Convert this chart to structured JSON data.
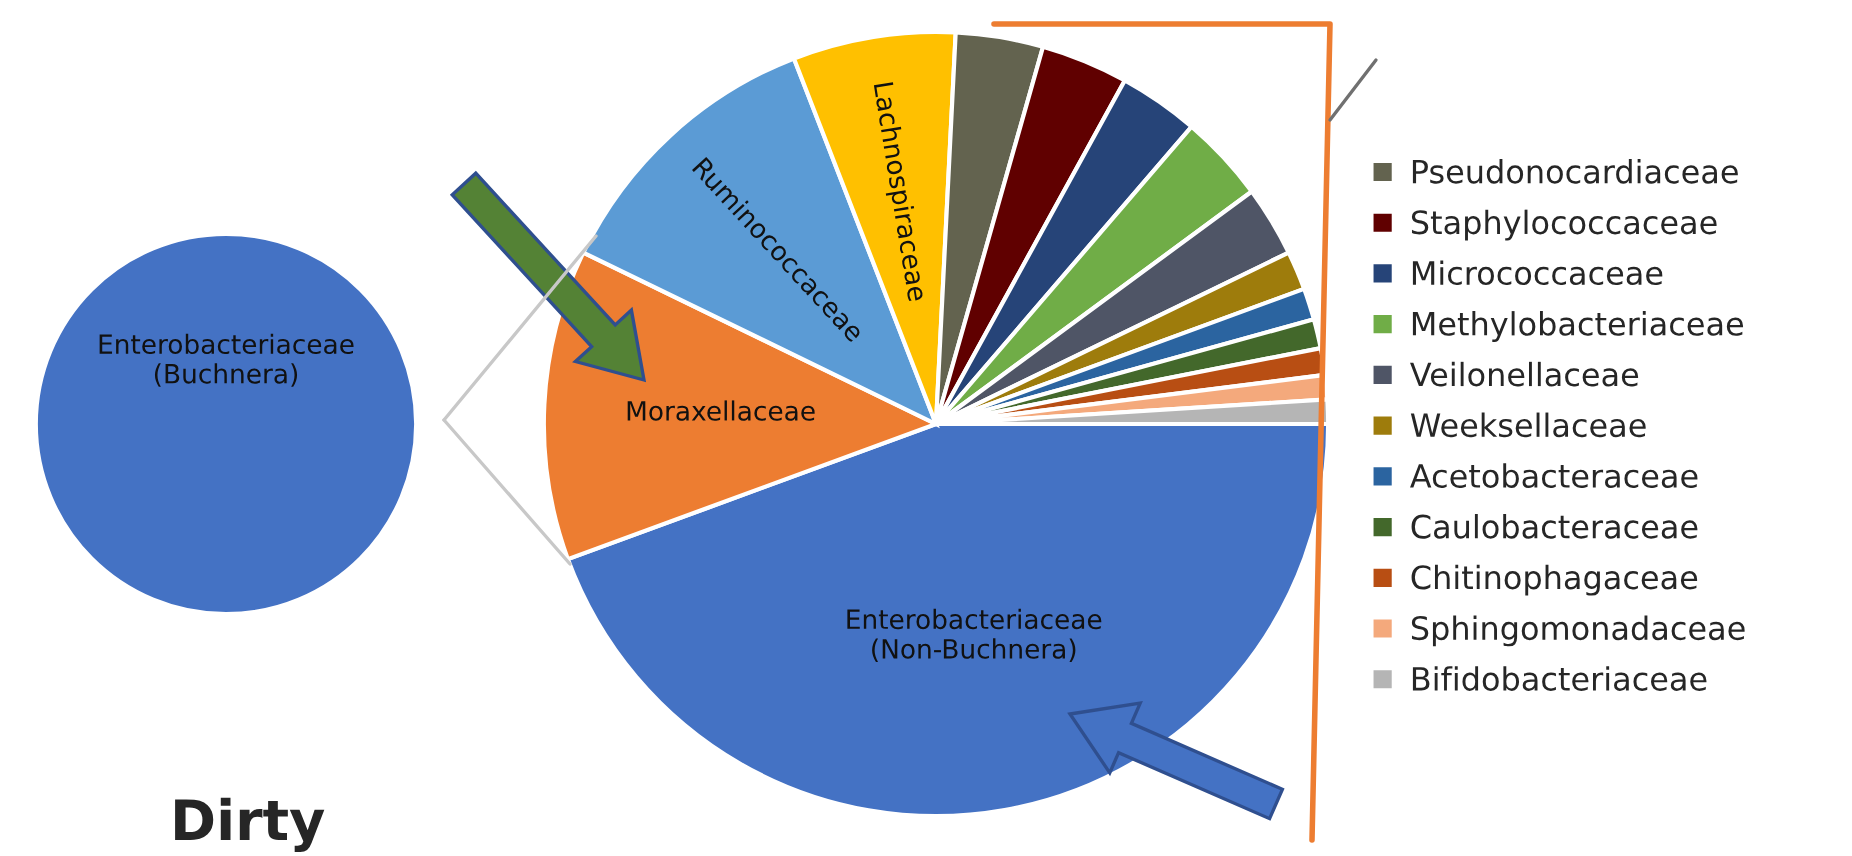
{
  "chart_data": [
    {
      "type": "pie",
      "categories": [
        "Enterobacteriaceae\n(Buchnera)"
      ],
      "values": [
        100
      ],
      "colors": [
        "#4472c4"
      ],
      "annotations": [
        "Dirty"
      ]
    },
    {
      "type": "pie",
      "categories": [
        "Enterobacteriaceae\n(Non-Buchnera)",
        "Moraxellaceae",
        "Ruminococcaceae",
        "Lachnospiraceae",
        "Pseudonocardiaceae",
        "Staphylococcaceae",
        "Micrococcaceae",
        "Methylobacteriaceae",
        "Veilonellaceae",
        "Weeksellaceae",
        "Acetobacteraceae",
        "Caulobacteraceae",
        "Chitinophagaceae",
        "Sphingomonadaceae",
        "Bifidobacteriaceae"
      ],
      "values": [
        44.4,
        12.8,
        11.9,
        6.7,
        3.6,
        3.6,
        3.3,
        3.6,
        2.9,
        1.6,
        1.3,
        1.2,
        1.1,
        1.0,
        1.0
      ],
      "colors": [
        "#4472c4",
        "#ed7d31",
        "#5b9bd5",
        "#ffc000",
        "#63634f",
        "#600000",
        "#264478",
        "#70ad47",
        "#4f5566",
        "#9e7c0c",
        "#2b64a0",
        "#43682b",
        "#b84e13",
        "#f4a97c",
        "#b5b5b5"
      ],
      "legend": "right"
    }
  ]
}
